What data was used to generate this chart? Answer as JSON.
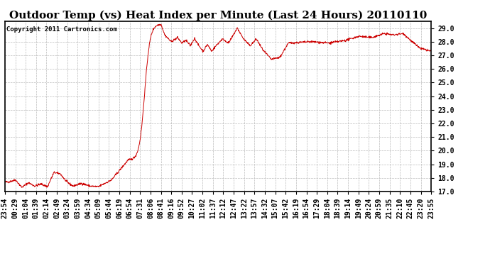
{
  "title": "Outdoor Temp (vs) Heat Index per Minute (Last 24 Hours) 20110110",
  "copyright_text": "Copyright 2011 Cartronics.com",
  "line_color": "#cc0000",
  "background_color": "#ffffff",
  "grid_color": "#bbbbbb",
  "ylim": [
    17.0,
    29.5
  ],
  "yticks": [
    17.0,
    18.0,
    19.0,
    20.0,
    21.0,
    22.0,
    23.0,
    24.0,
    25.0,
    26.0,
    27.0,
    28.0,
    29.0
  ],
  "xtick_labels": [
    "23:54",
    "00:29",
    "01:04",
    "01:39",
    "02:14",
    "02:49",
    "03:24",
    "03:59",
    "04:34",
    "05:09",
    "05:44",
    "06:19",
    "06:54",
    "07:31",
    "08:06",
    "08:41",
    "09:16",
    "09:52",
    "10:27",
    "11:02",
    "11:37",
    "12:12",
    "12:47",
    "13:22",
    "13:57",
    "14:32",
    "15:07",
    "15:42",
    "16:19",
    "16:54",
    "17:29",
    "18:04",
    "18:39",
    "19:14",
    "19:49",
    "20:24",
    "20:59",
    "21:35",
    "22:10",
    "22:45",
    "23:20",
    "23:55"
  ],
  "title_fontsize": 11,
  "tick_fontsize": 7,
  "copyright_fontsize": 6.5
}
